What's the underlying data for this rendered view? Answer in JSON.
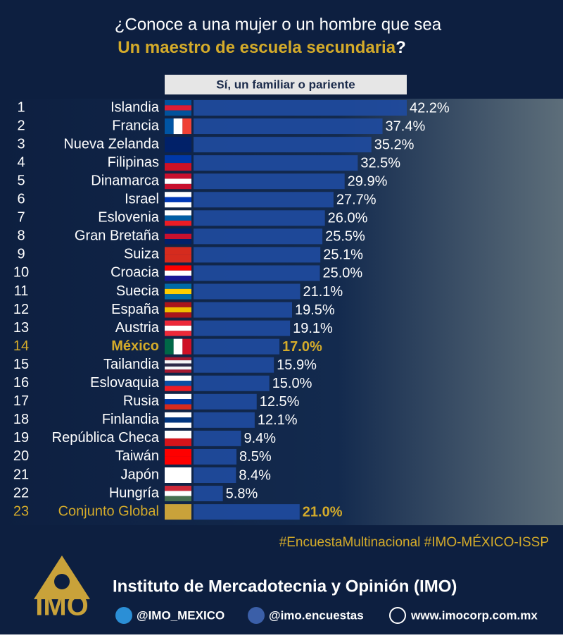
{
  "chart_data": {
    "type": "bar",
    "orientation": "horizontal",
    "title": "¿Conoce a una mujer o un hombre que sea",
    "subtitle": "Un maestro de escuela secundaria",
    "subtitle_end": "?",
    "value_header": "Sí, un familiar o pariente",
    "ranks": [
      "1",
      "2",
      "3",
      "4",
      "5",
      "6",
      "7",
      "8",
      "9",
      "10",
      "11",
      "12",
      "13",
      "14",
      "15",
      "16",
      "17",
      "18",
      "19",
      "20",
      "21",
      "22",
      "23"
    ],
    "categories": [
      "Islandia",
      "Francia",
      "Nueva Zelanda",
      "Filipinas",
      "Dinamarca",
      "Israel",
      "Eslovenia",
      "Gran Bretaña",
      "Suiza",
      "Croacia",
      "Suecia",
      "España",
      "Austria",
      "México",
      "Tailandia",
      "Eslovaquia",
      "Rusia",
      "Finlandia",
      "República Checa",
      "Taiwán",
      "Japón",
      "Hungría",
      "Conjunto Global"
    ],
    "values": [
      42.2,
      37.4,
      35.2,
      32.5,
      29.9,
      27.7,
      26.0,
      25.5,
      25.1,
      25.0,
      21.1,
      19.5,
      19.1,
      17.0,
      15.9,
      15.0,
      12.5,
      12.1,
      9.4,
      8.5,
      8.4,
      5.8,
      21.0
    ],
    "value_labels": [
      "42.2%",
      "37.4%",
      "35.2%",
      "32.5%",
      "29.9%",
      "27.7%",
      "26.0%",
      "25.5%",
      "25.1%",
      "25.0%",
      "21.1%",
      "19.5%",
      "19.1%",
      "17.0%",
      "15.9%",
      "15.0%",
      "12.5%",
      "12.1%",
      "9.4%",
      "8.5%",
      "8.4%",
      "5.8%",
      "21.0%"
    ],
    "color": "#1f4b9e",
    "highlight": {
      "indices": [
        13,
        22
      ],
      "color": "#d4ab2a"
    }
  },
  "footer": {
    "hashtag": "#EncuestaMultinacional #IMO-MÉXICO-ISSP",
    "logo": "IMO",
    "institute": "Instituto de Mercadotecnia y Opinión  (IMO)",
    "twitter": "@IMO_MEXICO",
    "facebook": "@imo.encuestas",
    "web": "www.imocorp.com.mx"
  }
}
